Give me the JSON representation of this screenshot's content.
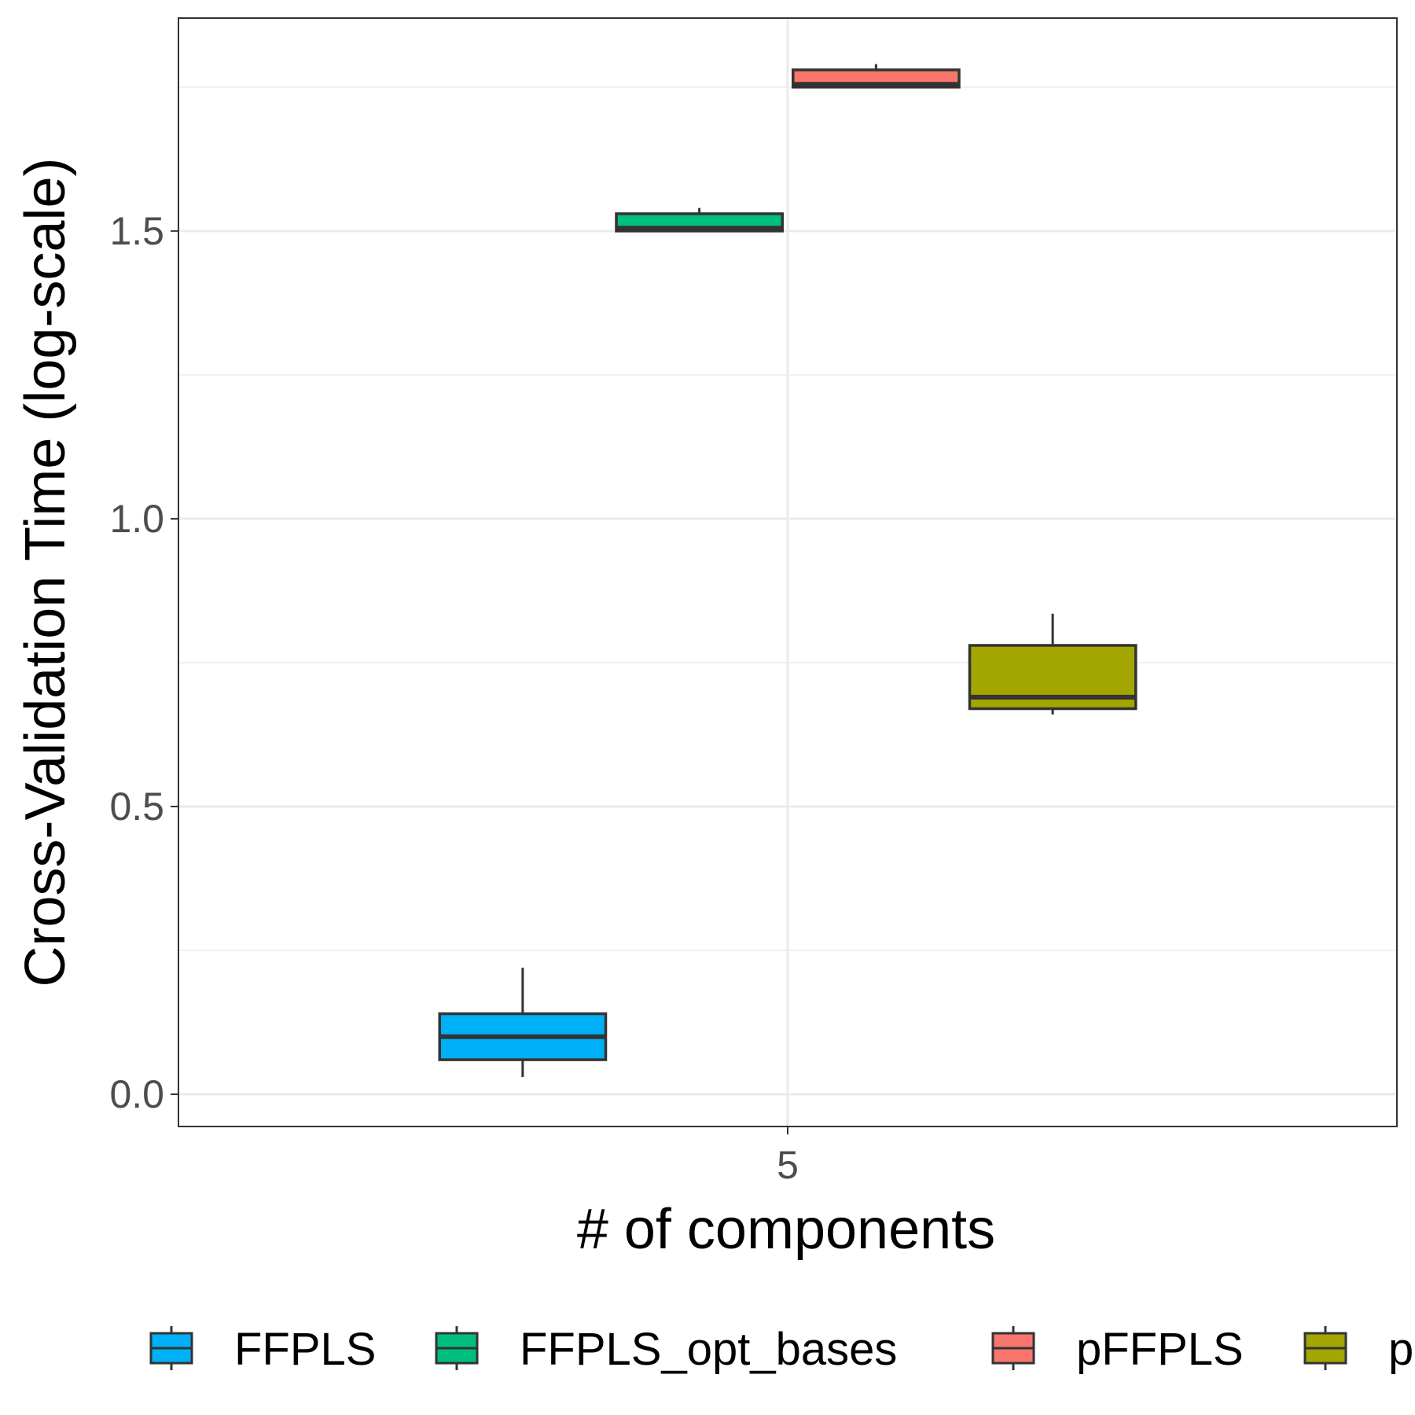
{
  "chart_data": {
    "type": "box",
    "title": "",
    "xlabel": "# of components",
    "ylabel": "Cross-Validation Time (log-scale)",
    "x_categories": [
      "5"
    ],
    "ylim": [
      -0.056,
      1.87
    ],
    "y_ticks": [
      0.0,
      0.5,
      1.0,
      1.5
    ],
    "y_tick_labels": [
      "0.0",
      "0.5",
      "1.0",
      "1.5"
    ],
    "grid": true,
    "legend_position": "bottom",
    "series": [
      {
        "name": "FFPLS",
        "color": "#00b0f6",
        "category": "5",
        "whisker_low": 0.03,
        "q1": 0.06,
        "median": 0.1,
        "q3": 0.14,
        "whisker_high": 0.22
      },
      {
        "name": "FFPLS_opt_bases",
        "color": "#00bf7d",
        "category": "5",
        "whisker_low": 1.5,
        "q1": 1.5,
        "median": 1.505,
        "q3": 1.53,
        "whisker_high": 1.54
      },
      {
        "name": "pFFPLS",
        "color": "#f8766d",
        "category": "5",
        "whisker_low": 1.75,
        "q1": 1.75,
        "median": 1.755,
        "q3": 1.78,
        "whisker_high": 1.79
      },
      {
        "name": "p",
        "color": "#a3a500",
        "category": "5",
        "whisker_low": 0.66,
        "q1": 0.67,
        "median": 0.69,
        "q3": 0.78,
        "whisker_high": 0.835
      }
    ]
  }
}
